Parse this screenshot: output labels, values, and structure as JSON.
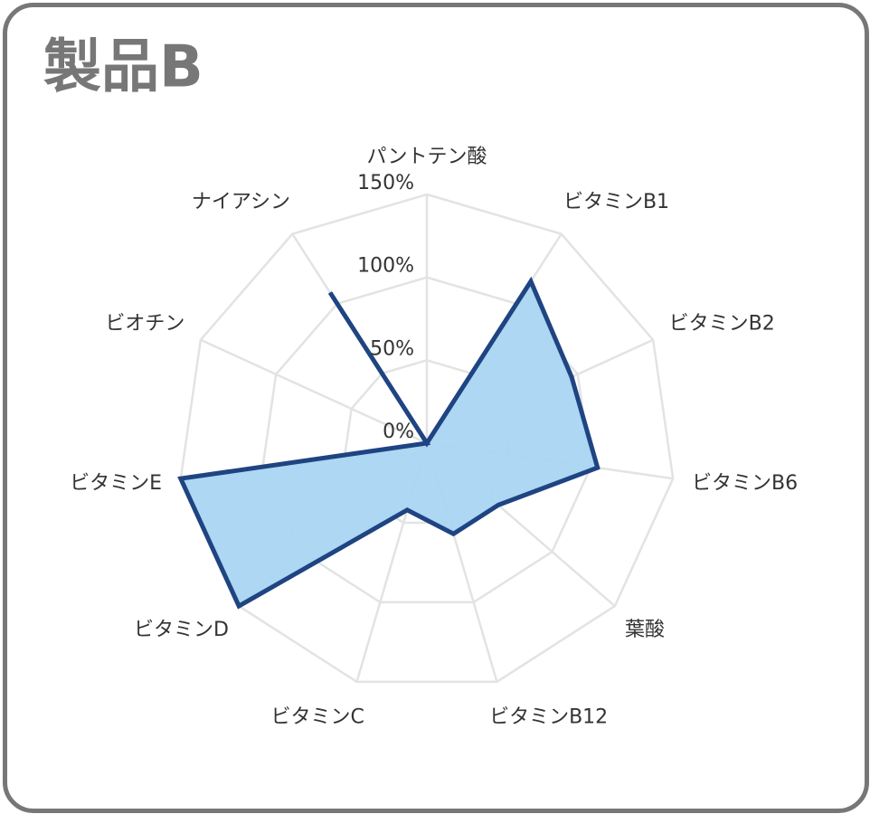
{
  "chart_data": {
    "type": "radar",
    "title": "製品B",
    "categories": [
      "パントテン酸",
      "ビタミンB1",
      "ビタミンB2",
      "ビタミンB6",
      "葉酸",
      "ビタミンB12",
      "ビタミンC",
      "ビタミンD",
      "ビタミンE",
      "ビオチン",
      "ナイアシン"
    ],
    "series": [
      {
        "name": "製品B",
        "color": "#1f4482",
        "fill": "#a9d5f1",
        "values": [
          0,
          116,
          96,
          104,
          57,
          57,
          42,
          150,
          150,
          0,
          108
        ]
      }
    ],
    "ylim": [
      0,
      150
    ],
    "yticks": [
      {
        "value": 0,
        "label": "0%"
      },
      {
        "value": 50,
        "label": "50%"
      },
      {
        "value": 100,
        "label": "100%"
      },
      {
        "value": 150,
        "label": "150%"
      }
    ],
    "grid": true
  }
}
